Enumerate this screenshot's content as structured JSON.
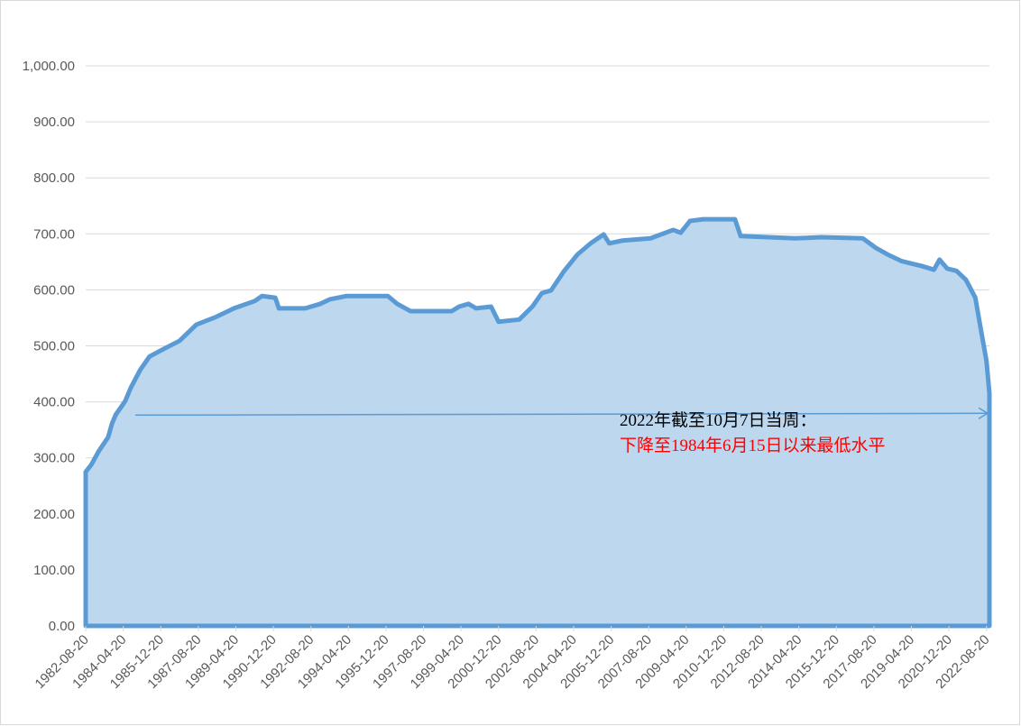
{
  "chart_data": {
    "type": "area",
    "x": [
      "1982-08-20",
      "1982-11-20",
      "1983-03-20",
      "1983-08-20",
      "1983-10-20",
      "1983-12-20",
      "1984-05-20",
      "1984-08-20",
      "1985-01-20",
      "1985-06-20",
      "1985-11-20",
      "1986-10-20",
      "1987-07-20",
      "1988-05-20",
      "1989-03-20",
      "1990-02-20",
      "1990-06-20",
      "1991-01-20",
      "1991-03-20",
      "1992-05-20",
      "1993-01-20",
      "1993-06-20",
      "1994-03-20",
      "1996-01-20",
      "1996-06-20",
      "1997-01-20",
      "1998-11-20",
      "1999-03-20",
      "1999-08-20",
      "1999-12-20",
      "2000-08-20",
      "2000-12-20",
      "2001-11-20",
      "2002-06-20",
      "2002-11-20",
      "2003-04-20",
      "2003-11-20",
      "2004-06-20",
      "2005-01-20",
      "2005-08-20",
      "2005-11-20",
      "2006-06-20",
      "2007-09-20",
      "2008-09-20",
      "2009-01-20",
      "2009-06-20",
      "2010-01-20",
      "2011-06-20",
      "2011-09-20",
      "2014-02-20",
      "2015-04-20",
      "2017-02-20",
      "2017-09-20",
      "2018-04-20",
      "2018-11-20",
      "2019-09-20",
      "2020-04-20",
      "2020-07-20",
      "2020-11-20",
      "2021-04-20",
      "2021-09-20",
      "2022-02-20",
      "2022-05-20",
      "2022-08-20",
      "2022-10-07"
    ],
    "values": [
      275,
      288,
      312,
      337,
      361,
      377,
      401,
      425,
      457,
      481,
      490,
      509,
      538,
      551,
      567,
      580,
      589,
      586,
      567,
      567,
      575,
      583,
      589,
      589,
      575,
      562,
      562,
      570,
      575,
      567,
      570,
      543,
      547,
      570,
      594,
      599,
      634,
      663,
      683,
      699,
      683,
      688,
      692,
      707,
      702,
      723,
      726,
      726,
      696,
      692,
      694,
      692,
      675,
      662,
      651,
      643,
      636,
      654,
      638,
      634,
      618,
      586,
      530,
      473,
      415
    ],
    "color": "#5b9bd5",
    "fill": "#bdd7ee",
    "xlim": [
      "1982-08-20",
      "2022-10-07"
    ],
    "xticks": [
      "1982-08-20",
      "1984-04-20",
      "1985-12-20",
      "1987-08-20",
      "1989-04-20",
      "1990-12-20",
      "1992-08-20",
      "1994-04-20",
      "1995-12-20",
      "1997-08-20",
      "1999-04-20",
      "2000-12-20",
      "2002-08-20",
      "2004-04-20",
      "2005-12-20",
      "2007-08-20",
      "2009-04-20",
      "2010-12-20",
      "2012-08-20",
      "2014-04-20",
      "2015-12-20",
      "2017-08-20",
      "2019-04-20",
      "2020-12-20",
      "2022-08-20"
    ],
    "ylim": [
      0,
      1000
    ],
    "yticks": [
      {
        "value": 0,
        "label": "0.00"
      },
      {
        "value": 100,
        "label": "100.00"
      },
      {
        "value": 200,
        "label": "200.00"
      },
      {
        "value": 300,
        "label": "300.00"
      },
      {
        "value": 400,
        "label": "400.00"
      },
      {
        "value": 500,
        "label": "500.00"
      },
      {
        "value": 600,
        "label": "600.00"
      },
      {
        "value": 700,
        "label": "700.00"
      },
      {
        "value": 800,
        "label": "800.00"
      },
      {
        "value": 900,
        "label": "900.00"
      },
      {
        "value": 1000,
        "label": "1,000.00"
      }
    ],
    "grid": true,
    "annotations": [
      "2022年截至10月7日当周：",
      "下降至1984年6月15日以来最低水平"
    ]
  }
}
